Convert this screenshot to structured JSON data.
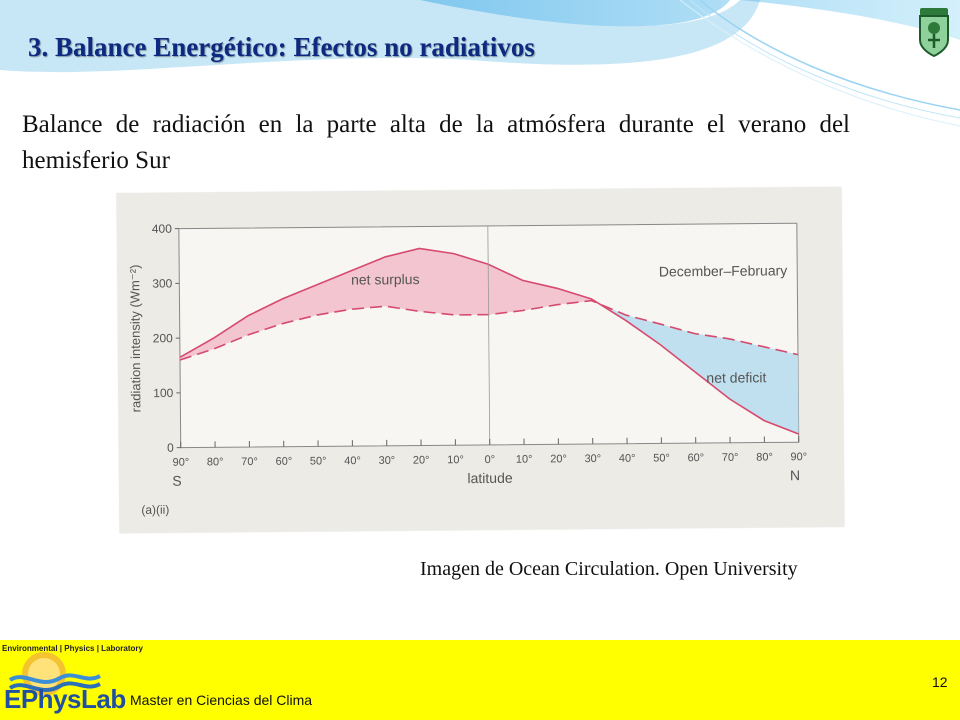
{
  "slide": {
    "title": "3.  Balance Energético: Efectos no radiativos",
    "subtitle": "Balance de radiación en la parte alta de la atmósfera durante el verano del hemisferio Sur",
    "caption": "Imagen de  Ocean Circulation. Open University",
    "footer_text": "Master en Ciencias del Clima",
    "page_number": "12"
  },
  "logo": {
    "header": "Environmental | Physics | Laboratory",
    "name": "EPhysLab"
  },
  "colors": {
    "title": "#0e2a80",
    "footer_bg": "#ffff00",
    "curve": "#d64a6e",
    "surplus_fill": "#f2bccb",
    "deficit_fill": "#b9def0"
  },
  "chart_data": {
    "type": "line",
    "season_label": "December–February",
    "panel_label": "(a)(ii)",
    "xlabel": "latitude",
    "ylabel": "radiation intensity (Wm⁻²)",
    "hemisphere_labels": {
      "south": "S",
      "north": "N"
    },
    "annotations": [
      "net surplus",
      "net deficit"
    ],
    "ylim": [
      0,
      400
    ],
    "yticks": [
      0,
      100,
      200,
      300,
      400
    ],
    "xlim": [
      -90,
      90
    ],
    "xtick_values": [
      -90,
      -80,
      -70,
      -60,
      -50,
      -40,
      -30,
      -20,
      -10,
      0,
      10,
      20,
      30,
      40,
      50,
      60,
      70,
      80,
      90
    ],
    "xtick_labels": [
      "90°",
      "80°",
      "70°",
      "60°",
      "50°",
      "40°",
      "30°",
      "20°",
      "10°",
      "0°",
      "10°",
      "20°",
      "30°",
      "40°",
      "50°",
      "60°",
      "70°",
      "80°",
      "90°"
    ],
    "x": [
      -90,
      -80,
      -70,
      -60,
      -50,
      -40,
      -30,
      -20,
      -10,
      0,
      10,
      20,
      30,
      40,
      50,
      60,
      70,
      80,
      90
    ],
    "series": [
      {
        "values": [
          165,
          200,
          240,
          270,
          295,
          320,
          345,
          360,
          350,
          330,
          300,
          285,
          265,
          225,
          180,
          130,
          80,
          40,
          15
        ],
        "style": "solid"
      },
      {
        "values": [
          160,
          180,
          205,
          225,
          240,
          250,
          255,
          245,
          238,
          238,
          245,
          255,
          262,
          235,
          218,
          200,
          190,
          175,
          160
        ],
        "style": "dashed"
      }
    ],
    "grid": false
  }
}
